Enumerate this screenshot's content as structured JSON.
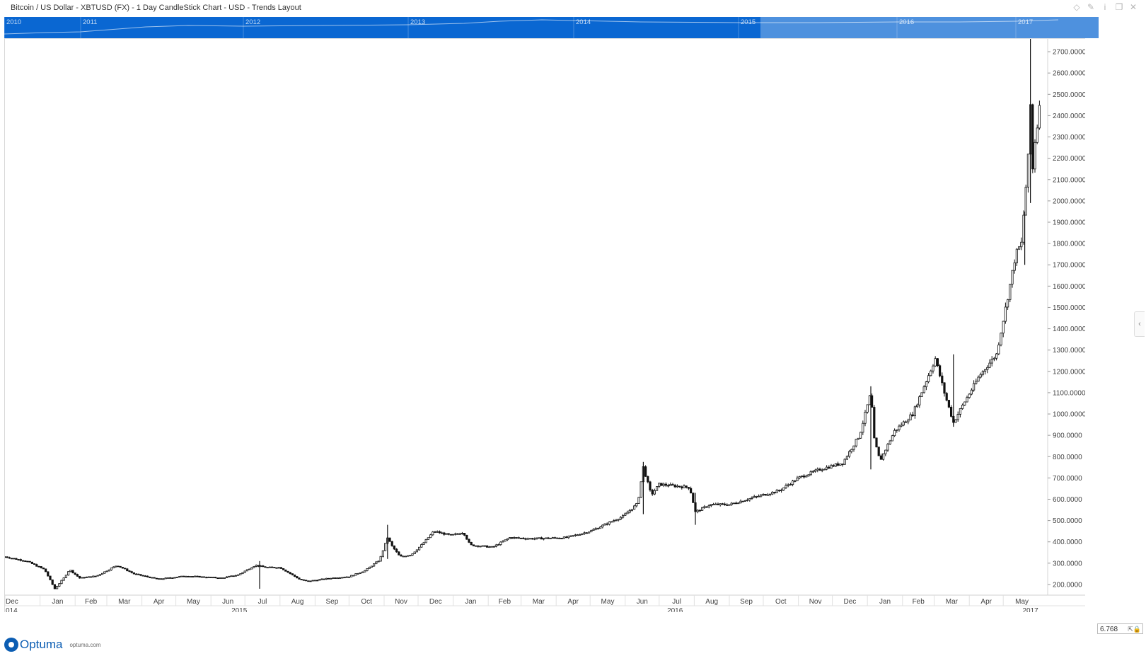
{
  "window": {
    "title": "Bitcoin / US Dollar - XBTUSD (FX) - 1 Day CandleStick Chart - USD - Trends Layout",
    "icons": [
      "diamond-icon",
      "pin-icon",
      "info-icon",
      "restore-icon",
      "close-icon"
    ]
  },
  "overview": {
    "years": [
      "2010",
      "2011",
      "2012",
      "2013",
      "2014",
      "2015",
      "2016",
      "2017"
    ],
    "background_color": "#0a67d2",
    "selection_color": "#5b9be0"
  },
  "zoom": {
    "value": "6.768"
  },
  "brand": {
    "name": "Optuma",
    "site": "optuma.com",
    "color": "#0b5db3"
  },
  "chart_data": {
    "type": "candlestick",
    "title": "Bitcoin / US Dollar - XBTUSD (FX) - 1 Day CandleStick Chart - USD - Trends Layout",
    "currency": "USD",
    "interval": "1 Day",
    "ylim": [
      150,
      2760
    ],
    "yticks": [
      200,
      300,
      400,
      500,
      600,
      700,
      800,
      900,
      1000,
      1100,
      1200,
      1300,
      1400,
      1500,
      1600,
      1700,
      1800,
      1900,
      2000,
      2100,
      2200,
      2300,
      2400,
      2500,
      2600,
      2700
    ],
    "ytick_labels": [
      "200.0000",
      "300.0000",
      "400.0000",
      "500.0000",
      "600.0000",
      "700.0000",
      "800.0000",
      "900.0000",
      "1000.0000",
      "1100.0000",
      "1200.0000",
      "1300.0000",
      "1400.0000",
      "1500.0000",
      "1600.0000",
      "1700.0000",
      "1800.0000",
      "1900.0000",
      "2000.0000",
      "2100.0000",
      "2200.0000",
      "2300.0000",
      "2400.0000",
      "2500.0000",
      "2600.0000",
      "2700.0000"
    ],
    "x_start": "2014-12-01",
    "x_end": "2017-06-03",
    "month_labels": [
      {
        "date": "2014-12-01",
        "label": "Dec"
      },
      {
        "date": "2015-01-01",
        "label": "Jan"
      },
      {
        "date": "2015-02-01",
        "label": "Feb"
      },
      {
        "date": "2015-03-01",
        "label": "Mar"
      },
      {
        "date": "2015-04-01",
        "label": "Apr"
      },
      {
        "date": "2015-05-01",
        "label": "May"
      },
      {
        "date": "2015-06-01",
        "label": "Jun"
      },
      {
        "date": "2015-07-01",
        "label": "Jul"
      },
      {
        "date": "2015-08-01",
        "label": "Aug"
      },
      {
        "date": "2015-09-01",
        "label": "Sep"
      },
      {
        "date": "2015-10-01",
        "label": "Oct"
      },
      {
        "date": "2015-11-01",
        "label": "Nov"
      },
      {
        "date": "2015-12-01",
        "label": "Dec"
      },
      {
        "date": "2016-01-01",
        "label": "Jan"
      },
      {
        "date": "2016-02-01",
        "label": "Feb"
      },
      {
        "date": "2016-03-01",
        "label": "Mar"
      },
      {
        "date": "2016-04-01",
        "label": "Apr"
      },
      {
        "date": "2016-05-01",
        "label": "May"
      },
      {
        "date": "2016-06-01",
        "label": "Jun"
      },
      {
        "date": "2016-07-01",
        "label": "Jul"
      },
      {
        "date": "2016-08-01",
        "label": "Aug"
      },
      {
        "date": "2016-09-01",
        "label": "Sep"
      },
      {
        "date": "2016-10-01",
        "label": "Oct"
      },
      {
        "date": "2016-11-01",
        "label": "Nov"
      },
      {
        "date": "2016-12-01",
        "label": "Dec"
      },
      {
        "date": "2017-01-01",
        "label": "Jan"
      },
      {
        "date": "2017-02-01",
        "label": "Feb"
      },
      {
        "date": "2017-03-01",
        "label": "Mar"
      },
      {
        "date": "2017-04-01",
        "label": "Apr"
      },
      {
        "date": "2017-05-01",
        "label": "May"
      }
    ],
    "year_labels": [
      {
        "date": "2014-12-01",
        "label": "014"
      },
      {
        "date": "2015-06-26",
        "label": "2015"
      },
      {
        "date": "2016-07-15",
        "label": "2016"
      },
      {
        "date": "2017-05-25",
        "label": "2017"
      }
    ],
    "price_path": [
      {
        "date": "2014-12-01",
        "close": 330
      },
      {
        "date": "2014-12-10",
        "close": 320
      },
      {
        "date": "2014-12-20",
        "close": 310
      },
      {
        "date": "2015-01-05",
        "close": 270
      },
      {
        "date": "2015-01-14",
        "close": 180
      },
      {
        "date": "2015-01-22",
        "close": 230
      },
      {
        "date": "2015-01-27",
        "close": 270
      },
      {
        "date": "2015-02-05",
        "close": 230
      },
      {
        "date": "2015-02-20",
        "close": 240
      },
      {
        "date": "2015-03-10",
        "close": 290
      },
      {
        "date": "2015-03-25",
        "close": 250
      },
      {
        "date": "2015-04-15",
        "close": 225
      },
      {
        "date": "2015-05-10",
        "close": 240
      },
      {
        "date": "2015-06-10",
        "close": 230
      },
      {
        "date": "2015-06-25",
        "close": 245
      },
      {
        "date": "2015-07-10",
        "close": 290
      },
      {
        "date": "2015-07-20",
        "close": 280
      },
      {
        "date": "2015-08-01",
        "close": 280
      },
      {
        "date": "2015-08-18",
        "close": 225
      },
      {
        "date": "2015-08-25",
        "close": 215
      },
      {
        "date": "2015-09-15",
        "close": 230
      },
      {
        "date": "2015-10-01",
        "close": 237
      },
      {
        "date": "2015-10-15",
        "close": 265
      },
      {
        "date": "2015-10-28",
        "close": 315
      },
      {
        "date": "2015-11-04",
        "close": 420
      },
      {
        "date": "2015-11-08",
        "close": 380
      },
      {
        "date": "2015-11-15",
        "close": 330
      },
      {
        "date": "2015-11-25",
        "close": 340
      },
      {
        "date": "2015-12-05",
        "close": 390
      },
      {
        "date": "2015-12-15",
        "close": 450
      },
      {
        "date": "2015-12-30",
        "close": 430
      },
      {
        "date": "2016-01-10",
        "close": 445
      },
      {
        "date": "2016-01-16",
        "close": 385
      },
      {
        "date": "2016-02-05",
        "close": 375
      },
      {
        "date": "2016-02-20",
        "close": 420
      },
      {
        "date": "2016-03-10",
        "close": 415
      },
      {
        "date": "2016-04-10",
        "close": 420
      },
      {
        "date": "2016-05-01",
        "close": 450
      },
      {
        "date": "2016-05-30",
        "close": 520
      },
      {
        "date": "2016-06-12",
        "close": 580
      },
      {
        "date": "2016-06-17",
        "close": 750
      },
      {
        "date": "2016-06-24",
        "close": 620
      },
      {
        "date": "2016-07-01",
        "close": 670
      },
      {
        "date": "2016-07-28",
        "close": 655
      },
      {
        "date": "2016-08-02",
        "close": 540
      },
      {
        "date": "2016-08-15",
        "close": 575
      },
      {
        "date": "2016-09-01",
        "close": 575
      },
      {
        "date": "2016-09-20",
        "close": 605
      },
      {
        "date": "2016-10-15",
        "close": 640
      },
      {
        "date": "2016-11-01",
        "close": 700
      },
      {
        "date": "2016-11-20",
        "close": 740
      },
      {
        "date": "2016-12-10",
        "close": 770
      },
      {
        "date": "2016-12-25",
        "close": 900
      },
      {
        "date": "2017-01-04",
        "close": 1100
      },
      {
        "date": "2017-01-07",
        "close": 880
      },
      {
        "date": "2017-01-12",
        "close": 780
      },
      {
        "date": "2017-01-25",
        "close": 920
      },
      {
        "date": "2017-02-10",
        "close": 1000
      },
      {
        "date": "2017-03-02",
        "close": 1260
      },
      {
        "date": "2017-03-10",
        "close": 1100
      },
      {
        "date": "2017-03-18",
        "close": 960
      },
      {
        "date": "2017-03-25",
        "close": 1030
      },
      {
        "date": "2017-04-10",
        "close": 1180
      },
      {
        "date": "2017-04-25",
        "close": 1280
      },
      {
        "date": "2017-05-05",
        "close": 1550
      },
      {
        "date": "2017-05-12",
        "close": 1750
      },
      {
        "date": "2017-05-17",
        "close": 1800
      },
      {
        "date": "2017-05-20",
        "close": 2000
      },
      {
        "date": "2017-05-23",
        "close": 2200
      },
      {
        "date": "2017-05-25",
        "close": 2450
      },
      {
        "date": "2017-05-26",
        "close": 2050
      },
      {
        "date": "2017-05-28",
        "close": 2250
      },
      {
        "date": "2017-05-31",
        "close": 2350
      },
      {
        "date": "2017-06-02",
        "close": 2470
      }
    ],
    "spikes": [
      {
        "date": "2015-07-14",
        "low": 180,
        "high": 310
      },
      {
        "date": "2015-11-04",
        "low": 320,
        "high": 480
      },
      {
        "date": "2016-06-17",
        "low": 530,
        "high": 775
      },
      {
        "date": "2016-08-02",
        "low": 480,
        "high": 630
      },
      {
        "date": "2017-01-04",
        "low": 740,
        "high": 1130
      },
      {
        "date": "2017-03-18",
        "low": 940,
        "high": 1280
      },
      {
        "date": "2017-05-25",
        "low": 1990,
        "high": 2760
      },
      {
        "date": "2017-05-20",
        "low": 1700,
        "high": 1950
      }
    ]
  }
}
